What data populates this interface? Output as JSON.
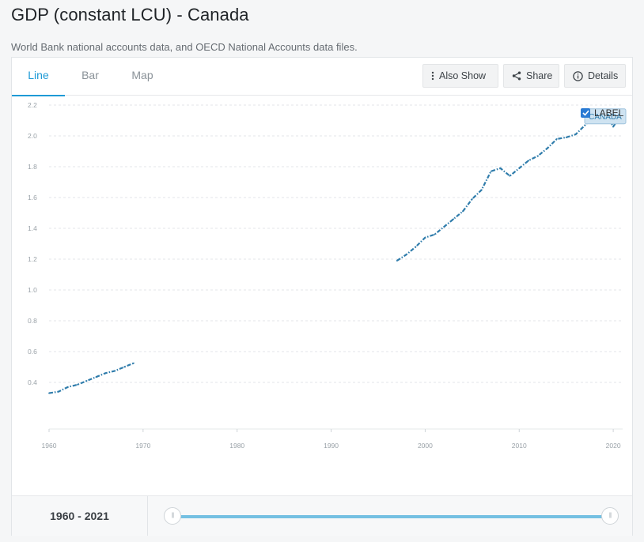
{
  "header": {
    "title": "GDP (constant LCU) - Canada",
    "source": "World Bank national accounts data, and OECD National Accounts data files."
  },
  "tabs": [
    {
      "label": "Line",
      "active": true
    },
    {
      "label": "Bar",
      "active": false
    },
    {
      "label": "Map",
      "active": false
    }
  ],
  "toolbar": {
    "also_show": "Also Show",
    "share": "Share",
    "details": "Details"
  },
  "label_toggle": {
    "label": "LABEL",
    "checked": true
  },
  "footer": {
    "range": "1960 - 2021"
  },
  "colors": {
    "accent": "#1e9ad6",
    "series": "#2f7cab",
    "tooltip_bg": "#cfe3f1"
  },
  "chart_data": {
    "type": "line",
    "title": "",
    "xlabel": "",
    "ylabel": "",
    "xlim": [
      1960,
      2021
    ],
    "ylim": [
      0.2,
      2.2
    ],
    "x_ticks": [
      "1960",
      "1970",
      "1980",
      "1990",
      "2000",
      "2010",
      "2020"
    ],
    "y_ticks": [
      "0.4",
      "0.6",
      "0.8",
      "1.0",
      "1.2",
      "1.4",
      "1.6",
      "1.8",
      "2.0",
      "2.2"
    ],
    "grid": true,
    "series": [
      {
        "name": "CANADA",
        "segments": [
          {
            "x": [
              1960,
              1961,
              1962,
              1963,
              1964,
              1965,
              1966,
              1967,
              1968,
              1969
            ],
            "y": [
              0.33,
              0.34,
              0.37,
              0.385,
              0.41,
              0.435,
              0.46,
              0.475,
              0.5,
              0.525
            ]
          },
          {
            "x": [
              1997,
              1998,
              1999,
              2000,
              2001,
              2002,
              2003,
              2004,
              2005,
              2006,
              2007,
              2008,
              2009,
              2010,
              2011,
              2012,
              2013,
              2014,
              2015,
              2016,
              2017,
              2018,
              2019,
              2020,
              2021
            ],
            "y": [
              1.19,
              1.23,
              1.28,
              1.34,
              1.36,
              1.41,
              1.46,
              1.51,
              1.59,
              1.65,
              1.77,
              1.79,
              1.74,
              1.79,
              1.84,
              1.87,
              1.92,
              1.98,
              1.99,
              2.01,
              2.07,
              2.13,
              2.17,
              2.06,
              2.15
            ]
          }
        ]
      }
    ],
    "end_label": "CANADA"
  }
}
